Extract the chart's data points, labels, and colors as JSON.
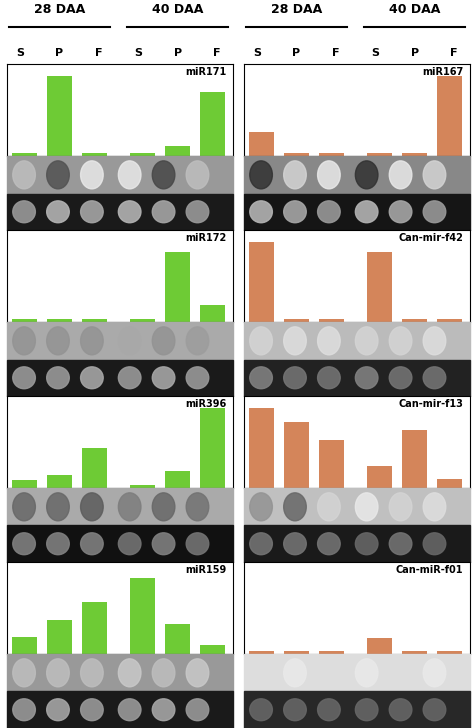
{
  "green_color": "#6ecb35",
  "orange_color": "#d4855a",
  "panels": [
    {
      "label": "miR171",
      "color": "green",
      "bars": [
        0.04,
        1.0,
        0.04,
        0.04,
        0.13,
        0.8
      ],
      "gel1_spots": [
        0.3,
        0.8,
        0.1,
        0.1,
        0.85,
        0.3
      ],
      "gel2_spots": [
        0.6,
        0.7,
        0.65,
        0.7,
        0.65,
        0.6
      ],
      "gel1_bg": "#999999",
      "gel2_bg": "#1a1a1a"
    },
    {
      "label": "miR167",
      "color": "orange",
      "bars": [
        0.3,
        0.04,
        0.04,
        0.04,
        0.04,
        1.0
      ],
      "gel1_spots": [
        0.95,
        0.2,
        0.1,
        0.95,
        0.1,
        0.2
      ],
      "gel2_spots": [
        0.7,
        0.65,
        0.6,
        0.7,
        0.65,
        0.6
      ],
      "gel1_bg": "#888888",
      "gel2_bg": "#151515"
    },
    {
      "label": "miR172",
      "color": "green",
      "bars": [
        0.04,
        0.04,
        0.04,
        0.04,
        0.88,
        0.22
      ],
      "gel1_spots": [
        0.5,
        0.5,
        0.5,
        0.4,
        0.5,
        0.45
      ],
      "gel2_spots": [
        0.6,
        0.6,
        0.65,
        0.6,
        0.65,
        0.6
      ],
      "gel1_bg": "#aaaaaa",
      "gel2_bg": "#1a1a1a"
    },
    {
      "label": "Can-mir-f42",
      "color": "orange",
      "bars": [
        1.0,
        0.04,
        0.04,
        0.88,
        0.04,
        0.04
      ],
      "gel1_spots": [
        0.2,
        0.15,
        0.15,
        0.2,
        0.2,
        0.15
      ],
      "gel2_spots": [
        0.5,
        0.45,
        0.45,
        0.5,
        0.45,
        0.45
      ],
      "gel1_bg": "#bbbbbb",
      "gel2_bg": "#222222"
    },
    {
      "label": "miR396",
      "color": "green",
      "bars": [
        0.1,
        0.16,
        0.5,
        0.04,
        0.22,
        1.0
      ],
      "gel1_spots": [
        0.7,
        0.7,
        0.75,
        0.6,
        0.7,
        0.65
      ],
      "gel2_spots": [
        0.5,
        0.5,
        0.5,
        0.45,
        0.5,
        0.45
      ],
      "gel1_bg": "#aaaaaa",
      "gel2_bg": "#111111"
    },
    {
      "label": "Can-mir-f13",
      "color": "orange",
      "bars": [
        1.0,
        0.82,
        0.6,
        0.28,
        0.72,
        0.12
      ],
      "gel1_spots": [
        0.5,
        0.7,
        0.2,
        0.1,
        0.2,
        0.15
      ],
      "gel2_spots": [
        0.45,
        0.45,
        0.45,
        0.4,
        0.45,
        0.4
      ],
      "gel1_bg": "#c0c0c0",
      "gel2_bg": "#1a1a1a"
    },
    {
      "label": "miR159",
      "color": "green",
      "bars": [
        0.22,
        0.42,
        0.65,
        0.95,
        0.38,
        0.12
      ],
      "gel1_spots": [
        0.3,
        0.3,
        0.3,
        0.25,
        0.3,
        0.25
      ],
      "gel2_spots": [
        0.6,
        0.65,
        0.6,
        0.6,
        0.65,
        0.6
      ],
      "gel1_bg": "#999999",
      "gel2_bg": "#1a1a1a"
    },
    {
      "label": "Can-miR-f01",
      "color": "orange",
      "bars": [
        0.04,
        0.04,
        0.04,
        0.2,
        0.04,
        0.04
      ],
      "gel1_spots": [
        0.15,
        0.1,
        0.15,
        0.1,
        0.15,
        0.1
      ],
      "gel2_spots": [
        0.4,
        0.4,
        0.4,
        0.4,
        0.4,
        0.4
      ],
      "gel1_bg": "#dddddd",
      "gel2_bg": "#282828"
    }
  ],
  "header_fontsize": 9,
  "spf_fontsize": 8,
  "panel_label_fontsize": 7
}
